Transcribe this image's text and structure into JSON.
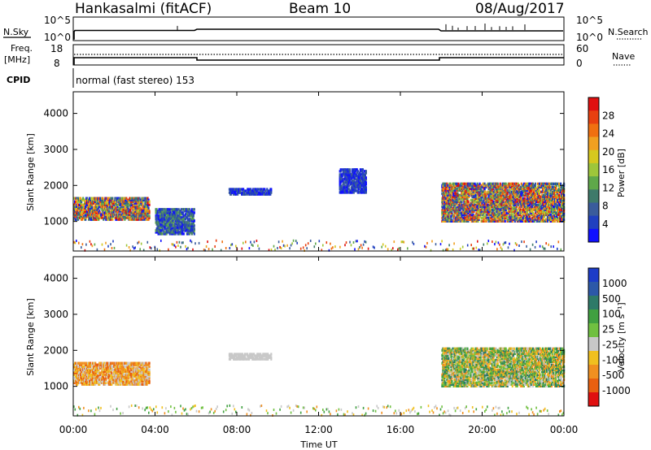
{
  "header": {
    "station": "Hankasalmi (fitACF)",
    "beam": "Beam 10",
    "date": "08/Aug/2017"
  },
  "summary_panels": {
    "noise": {
      "left_label": "N.Sky",
      "right_label": "N.Search",
      "left_ticks": [
        "10^5",
        "10^0"
      ],
      "right_ticks": [
        "10^5",
        "10^0"
      ]
    },
    "freq": {
      "left_label_line1": "Freq.",
      "left_label_line2": "[MHz]",
      "right_label": "Nave",
      "left_ticks": [
        "18",
        "8"
      ],
      "right_ticks": [
        "60",
        "0"
      ]
    },
    "cpid": {
      "label": "CPID",
      "text": "normal (fast stereo) 153"
    }
  },
  "chart_data": [
    {
      "type": "heatmap",
      "name": "power",
      "ylabel": "Slant Range [km]",
      "ylim": [
        180,
        4600
      ],
      "yticks": [
        "1000",
        "2000",
        "3000",
        "4000"
      ],
      "colorbar": {
        "title": "Power [dB]",
        "ticks": [
          "4",
          "8",
          "12",
          "16",
          "20",
          "24",
          "28"
        ],
        "colors": [
          "#1010ff",
          "#2040c0",
          "#3a5c9c",
          "#3e7a6a",
          "#5fa84a",
          "#9ec63a",
          "#d6c81e",
          "#f0a020",
          "#f07010",
          "#e84010",
          "#e01010"
        ]
      },
      "regions": [
        {
          "t0": 0.0,
          "t1": 3.7,
          "r0": 1050,
          "r1": 1650,
          "level": "mixed-high"
        },
        {
          "t0": 4.0,
          "t1": 5.9,
          "r0": 650,
          "r1": 1350,
          "level": "low-mid"
        },
        {
          "t0": 7.6,
          "t1": 9.7,
          "r0": 1750,
          "r1": 1900,
          "level": "low"
        },
        {
          "t0": 13.0,
          "t1": 14.3,
          "r0": 1800,
          "r1": 2450,
          "level": "low"
        },
        {
          "t0": 18.0,
          "t1": 24.0,
          "r0": 1000,
          "r1": 2050,
          "level": "mixed-high"
        }
      ]
    },
    {
      "type": "heatmap",
      "name": "velocity",
      "xlabel": "Time UT",
      "ylabel": "Slant Range [km]",
      "ylim": [
        180,
        4600
      ],
      "yticks": [
        "1000",
        "2000",
        "3000",
        "4000"
      ],
      "xticks": [
        "00:00",
        "04:00",
        "08:00",
        "12:00",
        "16:00",
        "20:00",
        "00:00"
      ],
      "xlim_hours": [
        0,
        24
      ],
      "colorbar": {
        "title": "Velocity [m s^-1]",
        "ticks": [
          "1000",
          "500",
          "100",
          "25",
          "-25",
          "-100",
          "-500",
          "-1000"
        ],
        "colors": [
          "#1c3cc8",
          "#2c58a8",
          "#2e7a68",
          "#40a040",
          "#70c040",
          "#c8c8c8",
          "#f0c020",
          "#f09020",
          "#e86010",
          "#e01010"
        ]
      },
      "regions": [
        {
          "t0": 0.0,
          "t1": 3.7,
          "r0": 1050,
          "r1": 1650,
          "level": "negative"
        },
        {
          "t0": 7.6,
          "t1": 9.7,
          "r0": 1750,
          "r1": 1900,
          "level": "ground"
        },
        {
          "t0": 18.0,
          "t1": 24.0,
          "r0": 1000,
          "r1": 2050,
          "level": "mixed"
        }
      ]
    }
  ]
}
